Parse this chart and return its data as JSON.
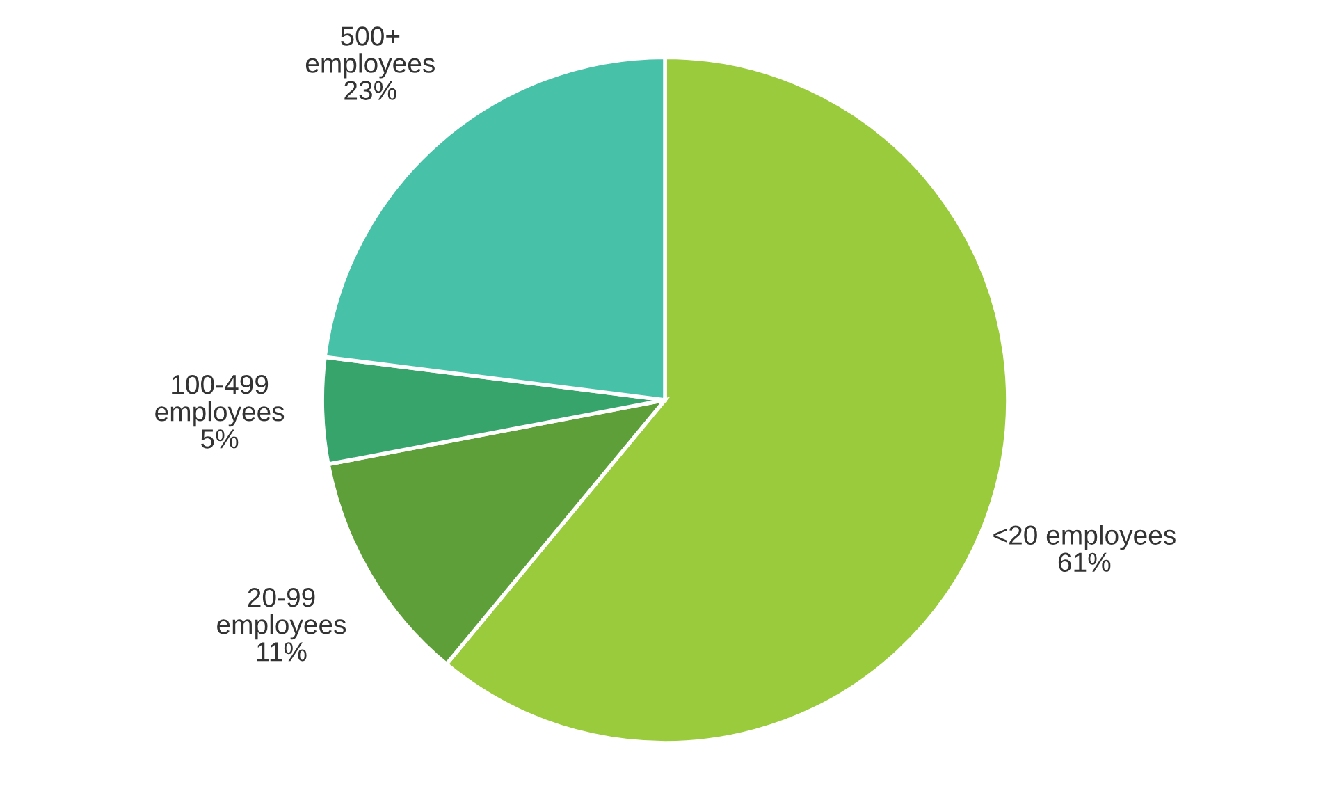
{
  "chart_data": {
    "type": "pie",
    "categories": [
      "<20 employees",
      "20-99\nemployees",
      "100-499\nemployees",
      "500+\nemployees"
    ],
    "values": [
      61,
      11,
      5,
      23
    ],
    "colors": [
      "#9acb3c",
      "#5e9f3a",
      "#37a46c",
      "#47c2a8"
    ],
    "value_labels": [
      "61%",
      "11%",
      "5%",
      "23%"
    ]
  }
}
